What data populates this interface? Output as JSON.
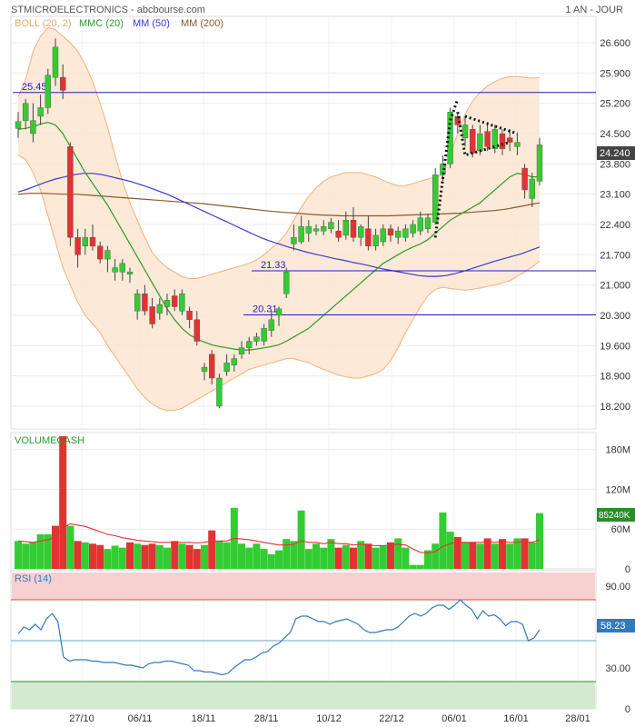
{
  "header": {
    "title": "STMICROELECTRONICS - abcbourse.com",
    "period": "1 AN - JOUR",
    "legend": [
      {
        "label": "BOLL (20, 2)",
        "color": "#f0b27a"
      },
      {
        "label": "MMC (20)",
        "color": "#2e9a2e"
      },
      {
        "label": "MM (50)",
        "color": "#3a3ad6"
      },
      {
        "label": "MM (200)",
        "color": "#8b5a2b"
      }
    ]
  },
  "colors": {
    "up": "#33cc33",
    "down": "#e23232",
    "boll_fill": "#fbe5d0",
    "boll_line": "#f0b27a",
    "mmc": "#2e9a2e",
    "mm50": "#3a3ad6",
    "mm200": "#8b5a2b",
    "support": "#1f1fbf",
    "volume_ma": "#e23232",
    "rsi_line": "#2f7bbf",
    "rsi_high_zone": "#f7d0d0",
    "rsi_low_zone": "#d4ead0",
    "last_badge": "#444444",
    "vol_badge": "#2a8c2a",
    "rsi_badge": "#2f7bbf"
  },
  "chart_data": [
    {
      "type": "candlestick",
      "title": "STMICROELECTRONICS",
      "ylim": [
        17.8,
        27.0
      ],
      "yticks": [
        "26.600",
        "25.900",
        "25.200",
        "24.500",
        "23.800",
        "23.100",
        "22.400",
        "21.700",
        "21.000",
        "20.300",
        "19.600",
        "18.900",
        "18.200"
      ],
      "x_ticks": [
        "27/10",
        "06/11",
        "18/11",
        "28/11",
        "10/12",
        "22/12",
        "06/01",
        "16/01",
        "28/01"
      ],
      "last_value": "24.240",
      "levels": [
        {
          "label": "25.45",
          "value": 25.45
        },
        {
          "label": "21.33",
          "value": 21.33
        },
        {
          "label": "20.31",
          "value": 20.31
        }
      ],
      "candles": [
        {
          "o": 24.62,
          "h": 25.0,
          "l": 24.4,
          "c": 24.78
        },
        {
          "o": 24.8,
          "h": 25.3,
          "l": 24.6,
          "c": 25.2
        },
        {
          "o": 24.5,
          "h": 25.2,
          "l": 24.3,
          "c": 24.8
        },
        {
          "o": 24.9,
          "h": 25.4,
          "l": 24.7,
          "c": 25.1
        },
        {
          "o": 25.1,
          "h": 26.0,
          "l": 24.95,
          "c": 25.85
        },
        {
          "o": 25.8,
          "h": 26.7,
          "l": 25.6,
          "c": 26.5
        },
        {
          "o": 25.8,
          "h": 26.1,
          "l": 25.3,
          "c": 25.5
        },
        {
          "o": 24.2,
          "h": 24.3,
          "l": 21.9,
          "c": 22.1
        },
        {
          "o": 22.1,
          "h": 22.3,
          "l": 21.4,
          "c": 21.7
        },
        {
          "o": 21.9,
          "h": 22.3,
          "l": 21.7,
          "c": 22.1
        },
        {
          "o": 22.1,
          "h": 22.4,
          "l": 21.8,
          "c": 21.9
        },
        {
          "o": 21.9,
          "h": 22.0,
          "l": 21.5,
          "c": 21.6
        },
        {
          "o": 21.6,
          "h": 21.9,
          "l": 21.3,
          "c": 21.8
        },
        {
          "o": 21.3,
          "h": 21.6,
          "l": 21.1,
          "c": 21.4
        },
        {
          "o": 21.3,
          "h": 21.6,
          "l": 21.1,
          "c": 21.5
        },
        {
          "o": 21.25,
          "h": 21.4,
          "l": 21.05,
          "c": 21.3
        },
        {
          "o": 20.4,
          "h": 20.9,
          "l": 20.2,
          "c": 20.8
        },
        {
          "o": 20.8,
          "h": 21.0,
          "l": 20.3,
          "c": 20.4
        },
        {
          "o": 20.5,
          "h": 20.7,
          "l": 20.0,
          "c": 20.1
        },
        {
          "o": 20.35,
          "h": 20.7,
          "l": 20.2,
          "c": 20.55
        },
        {
          "o": 20.5,
          "h": 20.8,
          "l": 20.3,
          "c": 20.65
        },
        {
          "o": 20.75,
          "h": 20.9,
          "l": 20.4,
          "c": 20.5
        },
        {
          "o": 20.4,
          "h": 20.9,
          "l": 20.3,
          "c": 20.8
        },
        {
          "o": 20.4,
          "h": 20.5,
          "l": 20.0,
          "c": 20.2
        },
        {
          "o": 20.2,
          "h": 20.4,
          "l": 19.6,
          "c": 19.7
        },
        {
          "o": 19.0,
          "h": 19.2,
          "l": 18.8,
          "c": 19.1
        },
        {
          "o": 19.4,
          "h": 19.5,
          "l": 18.7,
          "c": 18.85
        },
        {
          "o": 18.2,
          "h": 18.95,
          "l": 18.15,
          "c": 18.85
        },
        {
          "o": 19.0,
          "h": 19.4,
          "l": 18.9,
          "c": 19.2
        },
        {
          "o": 19.15,
          "h": 19.4,
          "l": 19.0,
          "c": 19.3
        },
        {
          "o": 19.4,
          "h": 19.7,
          "l": 19.3,
          "c": 19.55
        },
        {
          "o": 19.55,
          "h": 19.8,
          "l": 19.4,
          "c": 19.7
        },
        {
          "o": 19.7,
          "h": 19.9,
          "l": 19.6,
          "c": 19.8
        },
        {
          "o": 19.7,
          "h": 20.1,
          "l": 19.6,
          "c": 20.0
        },
        {
          "o": 19.95,
          "h": 20.4,
          "l": 19.8,
          "c": 20.2
        },
        {
          "o": 20.3,
          "h": 20.5,
          "l": 20.05,
          "c": 20.45
        },
        {
          "o": 20.8,
          "h": 21.4,
          "l": 20.7,
          "c": 21.3
        },
        {
          "o": 21.95,
          "h": 22.4,
          "l": 21.8,
          "c": 22.1
        },
        {
          "o": 22.0,
          "h": 22.6,
          "l": 21.95,
          "c": 22.35
        },
        {
          "o": 22.2,
          "h": 22.5,
          "l": 22.0,
          "c": 22.35
        },
        {
          "o": 22.25,
          "h": 22.4,
          "l": 22.15,
          "c": 22.3
        },
        {
          "o": 22.25,
          "h": 22.5,
          "l": 22.15,
          "c": 22.35
        },
        {
          "o": 22.3,
          "h": 22.55,
          "l": 22.2,
          "c": 22.45
        },
        {
          "o": 22.25,
          "h": 22.5,
          "l": 22.0,
          "c": 22.1
        },
        {
          "o": 22.15,
          "h": 22.7,
          "l": 22.05,
          "c": 22.5
        },
        {
          "o": 22.5,
          "h": 22.8,
          "l": 22.0,
          "c": 22.1
        },
        {
          "o": 22.1,
          "h": 22.4,
          "l": 21.9,
          "c": 22.35
        },
        {
          "o": 22.3,
          "h": 22.6,
          "l": 21.8,
          "c": 21.9
        },
        {
          "o": 21.9,
          "h": 22.3,
          "l": 21.8,
          "c": 22.15
        },
        {
          "o": 22.0,
          "h": 22.4,
          "l": 21.9,
          "c": 22.3
        },
        {
          "o": 22.3,
          "h": 22.4,
          "l": 22.0,
          "c": 22.15
        },
        {
          "o": 22.1,
          "h": 22.35,
          "l": 21.95,
          "c": 22.25
        },
        {
          "o": 22.1,
          "h": 22.4,
          "l": 22.0,
          "c": 22.3
        },
        {
          "o": 22.2,
          "h": 22.5,
          "l": 22.1,
          "c": 22.4
        },
        {
          "o": 22.25,
          "h": 22.7,
          "l": 22.15,
          "c": 22.55
        },
        {
          "o": 22.3,
          "h": 22.65,
          "l": 22.2,
          "c": 22.55
        },
        {
          "o": 22.45,
          "h": 23.7,
          "l": 22.4,
          "c": 23.55
        },
        {
          "o": 23.55,
          "h": 24.0,
          "l": 23.4,
          "c": 23.8
        },
        {
          "o": 23.8,
          "h": 25.1,
          "l": 23.7,
          "c": 25.0
        },
        {
          "o": 24.9,
          "h": 25.0,
          "l": 24.5,
          "c": 24.7
        },
        {
          "o": 24.4,
          "h": 24.9,
          "l": 24.2,
          "c": 24.7
        },
        {
          "o": 24.6,
          "h": 24.7,
          "l": 23.95,
          "c": 24.05
        },
        {
          "o": 24.1,
          "h": 24.7,
          "l": 24.0,
          "c": 24.5
        },
        {
          "o": 24.55,
          "h": 24.75,
          "l": 24.1,
          "c": 24.2
        },
        {
          "o": 24.15,
          "h": 24.7,
          "l": 24.05,
          "c": 24.6
        },
        {
          "o": 24.5,
          "h": 24.6,
          "l": 24.0,
          "c": 24.15
        },
        {
          "o": 24.4,
          "h": 24.6,
          "l": 24.1,
          "c": 24.3
        },
        {
          "o": 24.2,
          "h": 24.5,
          "l": 24.0,
          "c": 24.3
        },
        {
          "o": 23.7,
          "h": 23.8,
          "l": 23.0,
          "c": 23.2
        },
        {
          "o": 23.0,
          "h": 23.6,
          "l": 22.8,
          "c": 23.45
        },
        {
          "o": 23.4,
          "h": 24.4,
          "l": 23.3,
          "c": 24.24
        }
      ],
      "boll_upper": [
        25.35,
        25.75,
        26.4,
        26.75,
        26.95,
        26.9,
        26.75,
        26.6,
        26.4,
        26.1,
        25.7,
        25.2,
        24.65,
        24.0,
        23.4,
        22.9,
        22.5,
        22.1,
        21.75,
        21.55,
        21.4,
        21.3,
        21.2,
        21.15,
        21.15,
        21.2,
        21.25,
        21.3,
        21.35,
        21.4,
        21.45,
        21.5,
        21.58,
        21.7,
        21.85,
        22.0,
        22.2,
        22.5,
        22.8,
        23.05,
        23.25,
        23.4,
        23.5,
        23.55,
        23.6,
        23.6,
        23.6,
        23.55,
        23.5,
        23.42,
        23.35,
        23.3,
        23.3,
        23.35,
        23.4,
        23.45,
        23.5,
        23.55,
        24.0,
        24.5,
        24.95,
        25.25,
        25.45,
        25.6,
        25.7,
        25.78,
        25.82,
        25.82,
        25.8,
        25.78,
        25.8
      ],
      "boll_lower": [
        24.0,
        23.9,
        23.6,
        23.2,
        22.6,
        22.0,
        21.4,
        21.0,
        20.6,
        20.3,
        20.1,
        19.9,
        19.6,
        19.35,
        19.1,
        18.85,
        18.6,
        18.4,
        18.25,
        18.15,
        18.1,
        18.1,
        18.15,
        18.25,
        18.35,
        18.45,
        18.55,
        18.65,
        18.75,
        18.85,
        18.95,
        19.05,
        19.1,
        19.15,
        19.2,
        19.25,
        19.3,
        19.3,
        19.25,
        19.2,
        19.12,
        19.05,
        18.98,
        18.92,
        18.88,
        18.85,
        18.85,
        18.9,
        18.95,
        19.05,
        19.25,
        19.55,
        19.9,
        20.2,
        20.5,
        20.75,
        20.9,
        20.95,
        20.92,
        20.9,
        20.88,
        20.9,
        20.93,
        20.97,
        21.0,
        21.05,
        21.1,
        21.2,
        21.3,
        21.42,
        21.55
      ],
      "mmc_20": [
        24.6,
        24.62,
        24.66,
        24.72,
        24.76,
        24.7,
        24.5,
        24.2,
        23.9,
        23.6,
        23.35,
        23.1,
        22.85,
        22.55,
        22.25,
        21.95,
        21.65,
        21.35,
        21.05,
        20.75,
        20.45,
        20.2,
        20.0,
        19.85,
        19.75,
        19.68,
        19.62,
        19.58,
        19.55,
        19.52,
        19.5,
        19.5,
        19.52,
        19.55,
        19.58,
        19.62,
        19.7,
        19.8,
        19.9,
        20.0,
        20.15,
        20.3,
        20.45,
        20.6,
        20.75,
        20.9,
        21.05,
        21.2,
        21.35,
        21.5,
        21.6,
        21.7,
        21.8,
        21.88,
        21.95,
        22.05,
        22.2,
        22.35,
        22.5,
        22.6,
        22.7,
        22.8,
        22.9,
        23.05,
        23.2,
        23.35,
        23.5,
        23.58,
        23.55,
        23.5,
        23.5
      ],
      "mm_50": [
        23.15,
        23.22,
        23.3,
        23.38,
        23.45,
        23.5,
        23.55,
        23.58,
        23.58,
        23.55,
        23.5,
        23.45,
        23.4,
        23.33,
        23.26,
        23.18,
        23.1,
        23.0,
        22.9,
        22.8,
        22.7,
        22.6,
        22.5,
        22.4,
        22.3,
        22.2,
        22.1,
        22.02,
        21.95,
        21.88,
        21.82,
        21.76,
        21.71,
        21.66,
        21.61,
        21.57,
        21.52,
        21.48,
        21.43,
        21.38,
        21.34,
        21.3,
        21.26,
        21.22,
        21.2,
        21.2,
        21.22,
        21.27,
        21.33,
        21.4,
        21.47,
        21.54,
        21.6,
        21.66,
        21.72,
        21.8,
        21.88
      ],
      "mm_200": [
        23.1,
        23.12,
        23.12,
        23.11,
        23.1,
        23.1,
        23.08,
        23.06,
        23.04,
        23.02,
        23.0,
        22.98,
        22.96,
        22.94,
        22.92,
        22.9,
        22.88,
        22.85,
        22.82,
        22.79,
        22.76,
        22.73,
        22.7,
        22.68,
        22.66,
        22.64,
        22.62,
        22.61,
        22.6,
        22.6,
        22.6,
        22.6,
        22.6,
        22.61,
        22.62,
        22.63,
        22.64,
        22.65,
        22.66,
        22.68,
        22.7,
        22.72,
        22.75,
        22.8,
        22.85,
        22.9
      ]
    },
    {
      "type": "bar",
      "title": "VOLUMECASH",
      "ylim": [
        0,
        200
      ],
      "yticks": [
        "180M",
        "120M",
        "60M",
        "0"
      ],
      "tick_values": [
        180,
        120,
        60,
        0
      ],
      "last_value": "85240K",
      "values": [
        42,
        38,
        40,
        52,
        52,
        65,
        200,
        65,
        42,
        40,
        38,
        36,
        30,
        35,
        32,
        40,
        38,
        36,
        38,
        36,
        32,
        42,
        38,
        36,
        30,
        36,
        58,
        42,
        40,
        92,
        38,
        32,
        38,
        30,
        22,
        28,
        45,
        42,
        88,
        30,
        38,
        32,
        45,
        32,
        36,
        32,
        42,
        38,
        32,
        35,
        40,
        46,
        32,
        6,
        6,
        28,
        38,
        85,
        56,
        48,
        40,
        40,
        38,
        46,
        38,
        45,
        38,
        46,
        46,
        40,
        84
      ],
      "up": [
        1,
        1,
        1,
        1,
        1,
        0,
        0,
        1,
        0,
        1,
        0,
        0,
        1,
        1,
        1,
        0,
        1,
        0,
        0,
        1,
        1,
        0,
        1,
        0,
        0,
        1,
        0,
        1,
        1,
        1,
        1,
        1,
        1,
        1,
        1,
        1,
        1,
        1,
        1,
        1,
        1,
        1,
        1,
        0,
        1,
        0,
        1,
        0,
        1,
        1,
        0,
        1,
        1,
        1,
        1,
        1,
        1,
        1,
        1,
        0,
        1,
        0,
        1,
        0,
        1,
        0,
        1,
        1,
        0,
        1,
        1
      ],
      "moving_average": [
        42,
        41,
        40,
        42,
        44,
        48,
        62,
        68,
        66,
        64,
        60,
        56,
        52,
        50,
        47,
        45,
        43,
        42,
        41,
        40,
        40,
        40,
        40,
        40,
        39,
        40,
        42,
        42,
        42,
        46,
        45,
        44,
        42,
        40,
        38,
        36,
        36,
        37,
        42,
        40,
        40,
        38,
        40,
        38,
        38,
        36,
        37,
        36,
        35,
        35,
        36,
        37,
        36,
        30,
        25,
        24,
        26,
        34,
        38,
        40,
        40,
        40,
        40,
        41,
        40,
        41,
        40,
        40,
        41,
        40,
        44
      ]
    },
    {
      "type": "line",
      "title": "RSI (14)",
      "ylim": [
        0,
        100
      ],
      "yticks": [
        "90.00",
        "30.00",
        "0"
      ],
      "tick_values": [
        90,
        30,
        0
      ],
      "last_value": "58.23",
      "series": [
        {
          "values": [
            55,
            60,
            58,
            62,
            58,
            66,
            70,
            64,
            38,
            35,
            36,
            36,
            36,
            35,
            35,
            34,
            34,
            34,
            33,
            32,
            32,
            31,
            30,
            33,
            34,
            34,
            35,
            35,
            34,
            33,
            32,
            28,
            28,
            27,
            27,
            26,
            25,
            26,
            30,
            33,
            36,
            36,
            38,
            41,
            42,
            46,
            48,
            52,
            56,
            66,
            68,
            68,
            66,
            64,
            64,
            62,
            64,
            65,
            66,
            64,
            62,
            58,
            56,
            56,
            57,
            58,
            58,
            60,
            64,
            68,
            70,
            68,
            70,
            74,
            76,
            76,
            73,
            76,
            80,
            76,
            73,
            66,
            72,
            68,
            69,
            66,
            61,
            64,
            64,
            62,
            50,
            52,
            58
          ]
        }
      ]
    }
  ]
}
